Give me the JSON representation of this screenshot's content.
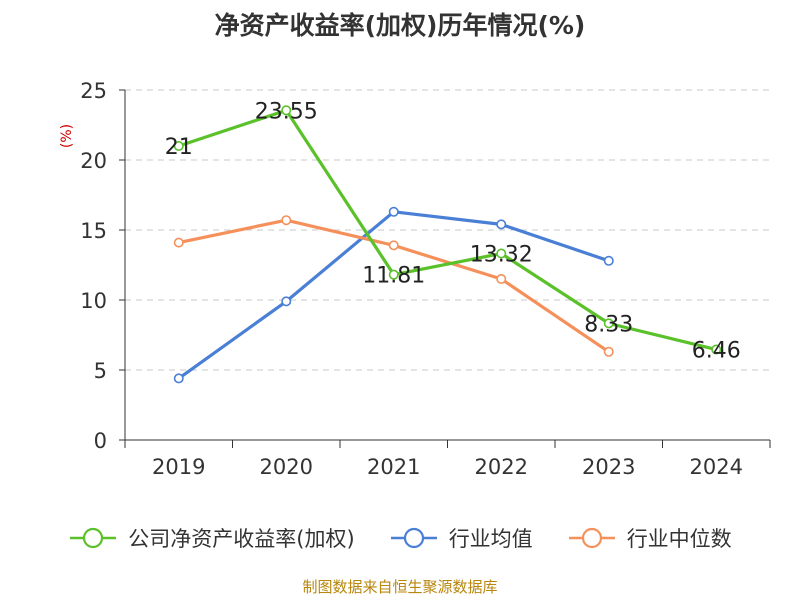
{
  "chart_data": {
    "type": "line",
    "title": "净资产收益率(加权)历年情况(%)",
    "ylabel": "(%)",
    "categories": [
      "2019",
      "2020",
      "2021",
      "2022",
      "2023",
      "2024"
    ],
    "ylim": [
      0,
      25
    ],
    "yticks": [
      0,
      5,
      10,
      15,
      20,
      25
    ],
    "grid": true,
    "legend_position": "bottom",
    "series": [
      {
        "name": "公司净资产收益率(加权)",
        "color": "#5bc12a",
        "values": [
          21,
          23.55,
          11.81,
          13.32,
          8.33,
          6.46
        ],
        "labels": [
          "21",
          "23.55",
          "11.81",
          "13.32",
          "8.33",
          "6.46"
        ]
      },
      {
        "name": "行业均值",
        "color": "#4a7fd6",
        "values": [
          4.4,
          9.9,
          16.3,
          15.4,
          12.8,
          null
        ]
      },
      {
        "name": "行业中位数",
        "color": "#f5905a",
        "values": [
          14.1,
          15.7,
          13.9,
          11.5,
          6.3,
          null
        ]
      }
    ]
  },
  "source": "制图数据来自恒生聚源数据库"
}
